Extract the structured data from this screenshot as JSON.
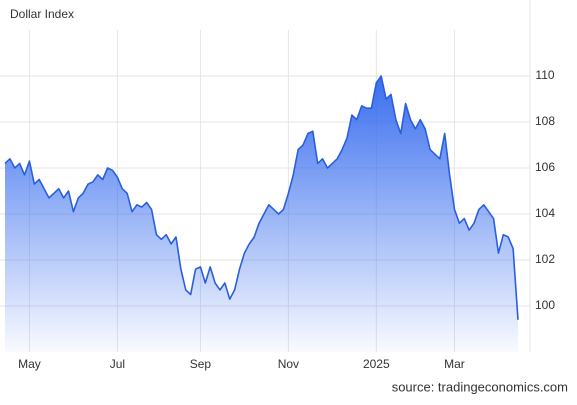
{
  "chart_data": {
    "type": "area",
    "title": "Dollar Index",
    "source": "source: tradingeconomics.com",
    "color": "#2a5fdc",
    "categories": [
      null,
      null,
      null,
      null,
      null,
      "May",
      null,
      null,
      null,
      null,
      null,
      null,
      null,
      null,
      null,
      null,
      null,
      null,
      null,
      null,
      null,
      null,
      null,
      "Jul",
      null,
      null,
      null,
      null,
      null,
      null,
      null,
      null,
      null,
      null,
      null,
      null,
      null,
      null,
      null,
      null,
      "Sep",
      null,
      null,
      null,
      null,
      null,
      null,
      null,
      null,
      null,
      null,
      null,
      null,
      null,
      null,
      null,
      null,
      null,
      "Nov",
      null,
      null,
      null,
      null,
      null,
      null,
      null,
      null,
      null,
      null,
      null,
      null,
      null,
      null,
      null,
      null,
      null,
      "2025",
      null,
      null,
      null,
      null,
      null,
      null,
      null,
      null,
      null,
      null,
      null,
      null,
      null,
      null,
      null,
      "Mar",
      null,
      null,
      null,
      null,
      null,
      null,
      null,
      null,
      null,
      null,
      null,
      null,
      null
    ],
    "values": [
      106.2,
      106.4,
      106,
      106.2,
      105.7,
      106.3,
      105.3,
      105.5,
      105.1,
      104.7,
      104.9,
      105.1,
      104.7,
      105,
      104.1,
      104.7,
      104.9,
      105.3,
      105.4,
      105.7,
      105.5,
      106,
      105.9,
      105.6,
      105.1,
      104.9,
      104.1,
      104.4,
      104.3,
      104.5,
      104.2,
      103.1,
      102.9,
      103.1,
      102.7,
      103,
      101.6,
      100.7,
      100.5,
      101.6,
      101.7,
      101,
      101.7,
      101,
      100.7,
      101,
      100.3,
      100.7,
      101.6,
      102.3,
      102.7,
      103,
      103.6,
      104,
      104.4,
      104.2,
      104,
      104.2,
      104.9,
      105.7,
      106.8,
      107,
      107.5,
      107.6,
      106.2,
      106.4,
      106,
      106.2,
      106.4,
      106.8,
      107.3,
      108.3,
      108.1,
      108.7,
      108.6,
      108.6,
      109.7,
      110,
      109,
      109.2,
      108.1,
      107.5,
      108.8,
      108.1,
      107.7,
      108.1,
      107.7,
      106.8,
      106.6,
      106.4,
      107.5,
      105.7,
      104.2,
      103.6,
      103.8,
      103.3,
      103.6,
      104.2,
      104.4,
      104.1,
      103.8,
      102.3,
      103.1,
      103,
      102.5,
      99.4
    ],
    "ylim": [
      98,
      112
    ],
    "yticks": [
      100,
      102,
      104,
      106,
      108,
      110
    ],
    "grid": true
  }
}
